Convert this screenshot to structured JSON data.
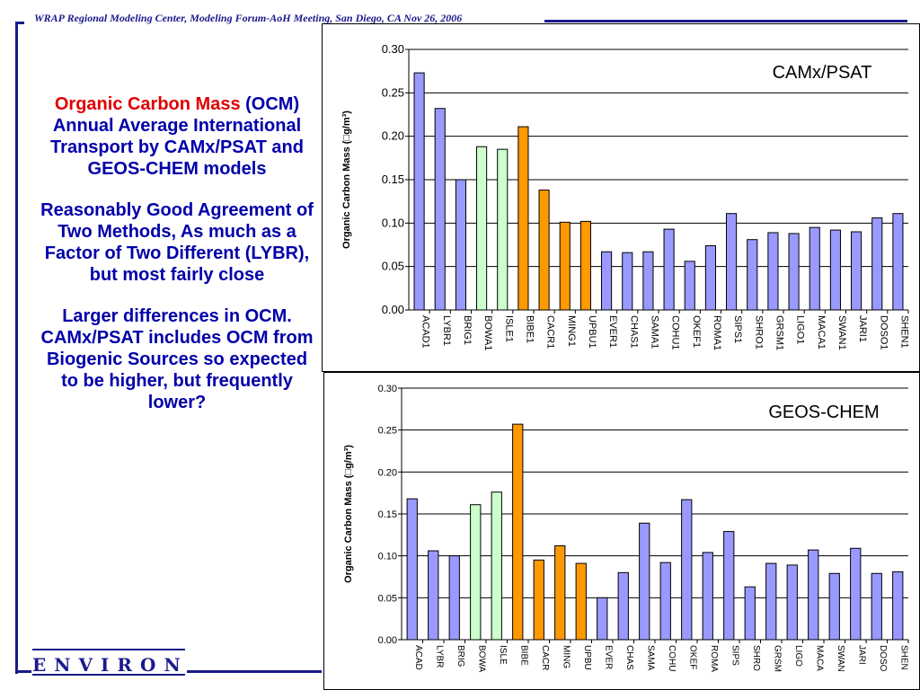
{
  "header": {
    "title": "WRAP Regional Modeling Center,  Modeling Forum-AoH Meeting, San Diego, CA  Nov 26, 2006"
  },
  "logo": {
    "text": "ENVIRON"
  },
  "sidebar": {
    "title_red": "Organic Carbon Mass",
    "title_rest": "(OCM) Annual Average International Transport by CAMx/PSAT and GEOS-CHEM models",
    "point1": "Reasonably Good Agreement of Two Methods, As much as a Factor of Two Different (LYBR), but most fairly close",
    "point2": "Larger differences in OCM.  CAMx/PSAT includes OCM from Biogenic Sources so expected to be higher, but frequently lower?"
  },
  "colors": {
    "default": "#9999ff",
    "group_green": "#ccffcc",
    "group_orange": "#ff9900",
    "accent": "#1a1a8c",
    "red": "#e00000"
  },
  "chart_data": [
    {
      "type": "bar",
      "title": "CAMx/PSAT",
      "ylabel": "Organic Carbon Mass (□g/m³)",
      "ylim": [
        0,
        0.3
      ],
      "yticks": [
        "0.00",
        "0.05",
        "0.10",
        "0.15",
        "0.20",
        "0.25",
        "0.30"
      ],
      "grid": true,
      "categories": [
        "ACAD1",
        "LYBR1",
        "BRIG1",
        "BOWA1",
        "ISLE1",
        "BIBE1",
        "CACR1",
        "MING1",
        "UPBU1",
        "EVER1",
        "CHAS1",
        "SAMA1",
        "COHU1",
        "OKEF1",
        "ROMA1",
        "SIPS1",
        "SHRO1",
        "GRSM1",
        "LIGO1",
        "MACA1",
        "SWAN1",
        "JARI1",
        "DOSO1",
        "SHEN1"
      ],
      "values": [
        0.273,
        0.232,
        0.15,
        0.188,
        0.185,
        0.211,
        0.138,
        0.101,
        0.102,
        0.067,
        0.066,
        0.067,
        0.093,
        0.056,
        0.074,
        0.111,
        0.081,
        0.089,
        0.088,
        0.095,
        0.092,
        0.09,
        0.106,
        0.111
      ],
      "bar_groups": [
        "default",
        "default",
        "default",
        "green",
        "green",
        "orange",
        "orange",
        "orange",
        "orange",
        "default",
        "default",
        "default",
        "default",
        "default",
        "default",
        "default",
        "default",
        "default",
        "default",
        "default",
        "default",
        "default",
        "default",
        "default"
      ]
    },
    {
      "type": "bar",
      "title": "GEOS-CHEM",
      "ylabel": "Organic Carbon Mass (□g/m³)",
      "ylim": [
        0,
        0.3
      ],
      "yticks": [
        "0.00",
        "0.05",
        "0.10",
        "0.15",
        "0.20",
        "0.25",
        "0.30"
      ],
      "grid": true,
      "categories": [
        "ACAD",
        "LYBR",
        "BRIG",
        "BOWA",
        "ISLE",
        "BIBE",
        "CACR",
        "MING",
        "UPBU",
        "EVER",
        "CHAS",
        "SAMA",
        "COHU",
        "OKEF",
        "ROMA",
        "SIPS",
        "SHRO",
        "GRSM",
        "LIGO",
        "MACA",
        "SWAN",
        "JARI",
        "DOSO",
        "SHEN"
      ],
      "values": [
        0.168,
        0.106,
        0.1,
        0.161,
        0.176,
        0.257,
        0.095,
        0.112,
        0.091,
        0.05,
        0.08,
        0.139,
        0.092,
        0.167,
        0.104,
        0.129,
        0.063,
        0.091,
        0.089,
        0.107,
        0.079,
        0.109,
        0.079,
        0.081
      ],
      "bar_groups": [
        "default",
        "default",
        "default",
        "green",
        "green",
        "orange",
        "orange",
        "orange",
        "orange",
        "default",
        "default",
        "default",
        "default",
        "default",
        "default",
        "default",
        "default",
        "default",
        "default",
        "default",
        "default",
        "default",
        "default",
        "default"
      ]
    }
  ]
}
